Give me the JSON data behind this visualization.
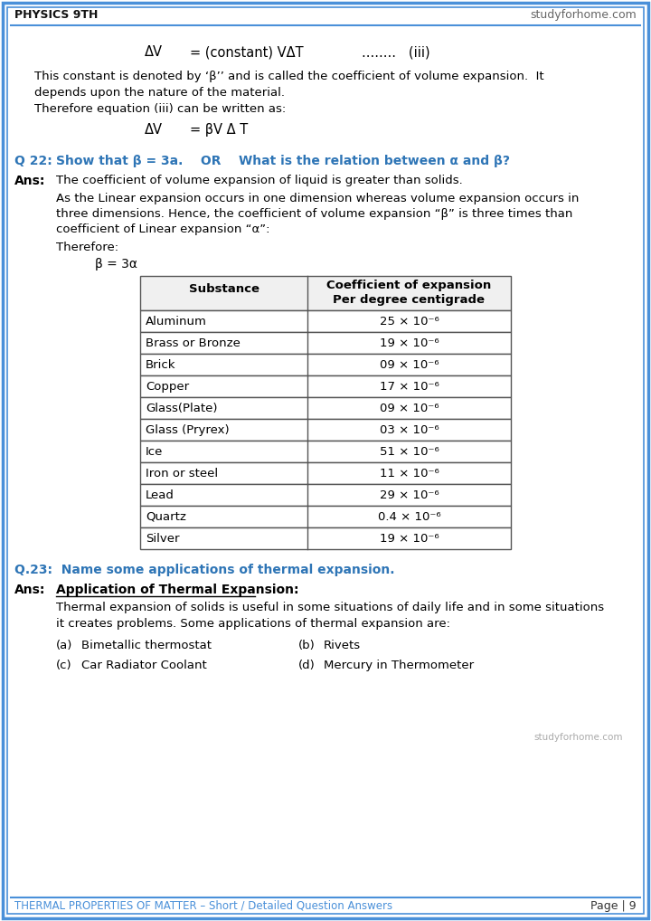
{
  "page_bg": "#ffffff",
  "border_color": "#4a90d9",
  "header_text_left": "PHYSICS 9TH",
  "header_text_right": "studyforhome.com",
  "footer_text_left": "THERMAL PROPERTIES OF MATTER – Short / Detailed Question Answers",
  "footer_text_right": "Page | 9",
  "footer_color": "#4a90d9",
  "equation1_lhs": "ΔV",
  "equation1_rhs": "= (constant) VΔT",
  "equation1_label": "........   (iii)",
  "para1_line1": "This constant is denoted by ‘β’’ and is called the coefficient of volume expansion.  It",
  "para1_line2": "depends upon the nature of the material.",
  "para2": "Therefore equation (iii) can be written as:",
  "equation2_lhs": "ΔV",
  "equation2_rhs": "= βV Δ T",
  "q22_text_part1": "Q 22: ",
  "q22_text_part2": "Show that β = 3a.    OR    What is the relation between α and β?",
  "ans_label": "Ans:",
  "ans_line1": "The coefficient of volume expansion of liquid is greater than solids.",
  "ans_para_line1": "As the Linear expansion occurs in one dimension whereas volume expansion occurs in",
  "ans_para_line2": "three dimensions. Hence, the coefficient of volume expansion “β” is three times than",
  "ans_para_line3": "coefficient of Linear expansion “α”:",
  "therefore_text": "Therefore:",
  "beta_eq": "β = 3α",
  "table_col1_header": "Substance",
  "table_col2_header_line1": "Coefficient of expansion",
  "table_col2_header_line2": "Per degree centigrade",
  "table_substances": [
    "Aluminum",
    "Brass or Bronze",
    "Brick",
    "Copper",
    "Glass(Plate)",
    "Glass (Pryrex)",
    "Ice",
    "Iron or steel",
    "Lead",
    "Quartz",
    "Silver"
  ],
  "table_values": [
    "25 × 10⁻⁶",
    "19 × 10⁻⁶",
    "09 × 10⁻⁶",
    "17 × 10⁻⁶",
    "09 × 10⁻⁶",
    "03 × 10⁻⁶",
    "51 × 10⁻⁶",
    "11 × 10⁻⁶",
    "29 × 10⁻⁶",
    "0.4 × 10⁻⁶",
    "19 × 10⁻⁶"
  ],
  "q23_text": "Q.23:  Name some applications of thermal expansion.",
  "ans23_label": "Ans:",
  "ans23_heading": "Application of Thermal Expansion:",
  "ans23_para_line1": "Thermal expansion of solids is useful in some situations of daily life and in some situations",
  "ans23_para_line2": "it creates problems. Some applications of thermal expansion are:",
  "item_a_label": "(a)",
  "item_a_text": "Bimetallic thermostat",
  "item_b_label": "(b)",
  "item_b_text": "Rivets",
  "item_c_label": "(c)",
  "item_c_text": "Car Radiator Coolant",
  "item_d_label": "(d)",
  "item_d_text": "Mercury in Thermometer",
  "studyforhome_watermark": "studyforhome.com",
  "question_color": "#2e75b6",
  "body_color": "#000000",
  "table_border_color": "#555555",
  "table_header_bg": "#f0f0f0"
}
